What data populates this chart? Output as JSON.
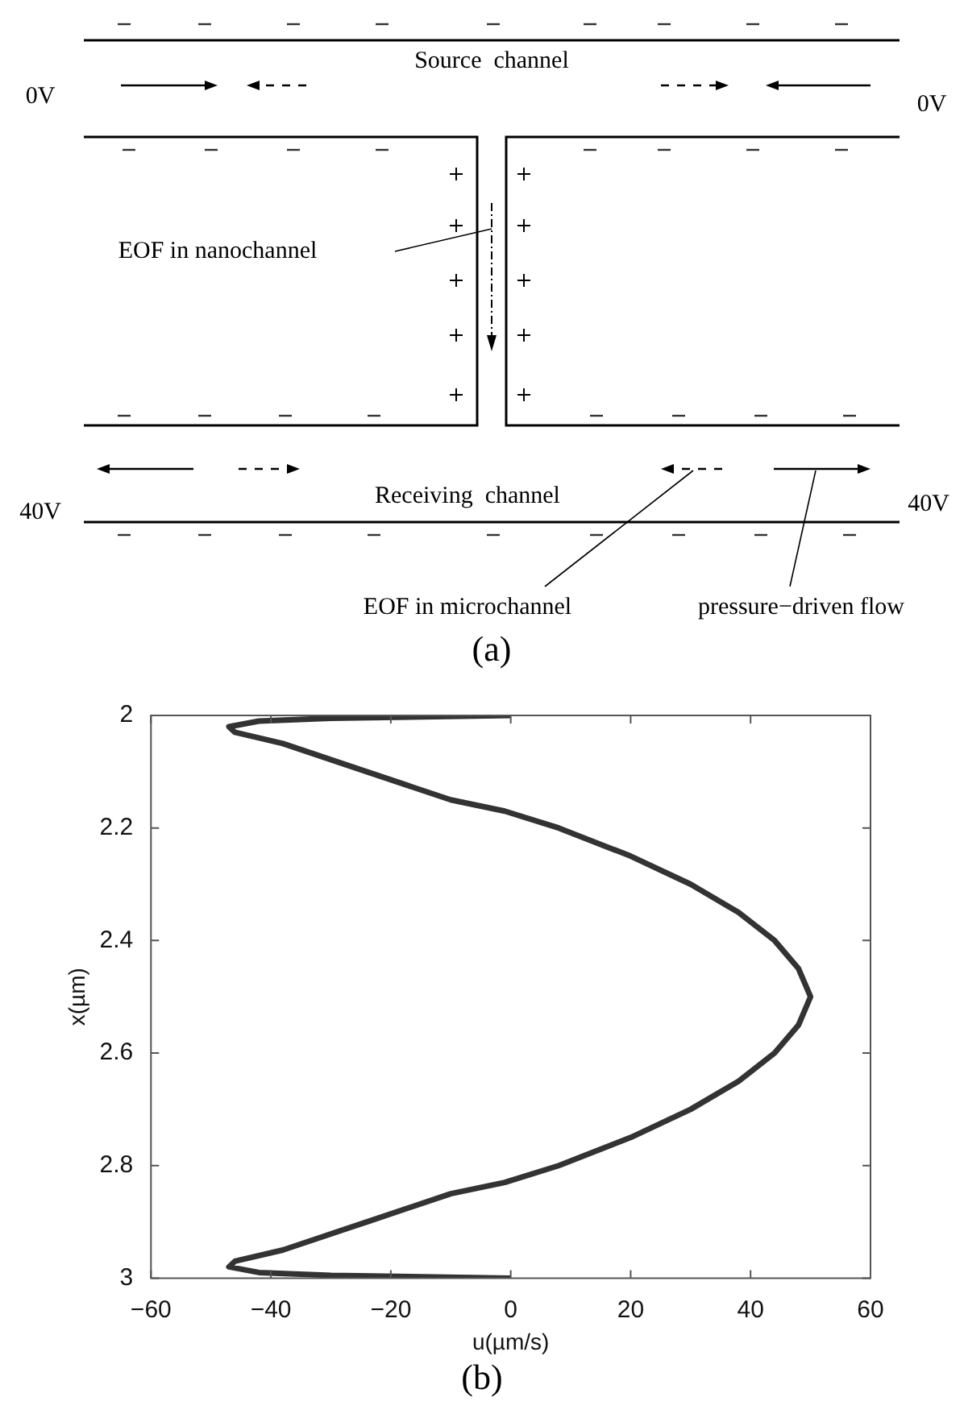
{
  "chart_data": {
    "type": "line",
    "xlabel": "u(µm/s)",
    "ylabel": "x(µm)",
    "annotations": [
      "Source  channel",
      "0V",
      "0V",
      "EOF in nanochannel",
      "Receiving  channel",
      "40V",
      "40V",
      "EOF in microchannel",
      "pressure−driven flow",
      "(a)",
      "(b)"
    ],
    "x": [
      0,
      -30,
      -42,
      -47,
      -46,
      -38,
      -24,
      -10,
      -1,
      8,
      20,
      30,
      38,
      44,
      48,
      50,
      48,
      44,
      38,
      30,
      20,
      8,
      -1,
      -10,
      -24,
      -38,
      -46,
      -47,
      -42,
      -30,
      0
    ],
    "series": [
      {
        "color": "#333333",
        "values": [
          2.0,
          2.005,
          2.01,
          2.02,
          2.03,
          2.05,
          2.1,
          2.15,
          2.17,
          2.2,
          2.25,
          2.3,
          2.35,
          2.4,
          2.45,
          2.5,
          2.55,
          2.6,
          2.65,
          2.7,
          2.75,
          2.8,
          2.83,
          2.85,
          2.9,
          2.95,
          2.97,
          2.98,
          2.99,
          2.995,
          3.0
        ]
      }
    ],
    "xlim": [
      -60,
      60
    ],
    "xticks": [
      -60,
      -40,
      -20,
      0,
      20,
      40,
      60
    ],
    "ylim": [
      3,
      2
    ],
    "yticks": [
      2,
      2.2,
      2.4,
      2.6,
      2.8,
      3
    ]
  }
}
